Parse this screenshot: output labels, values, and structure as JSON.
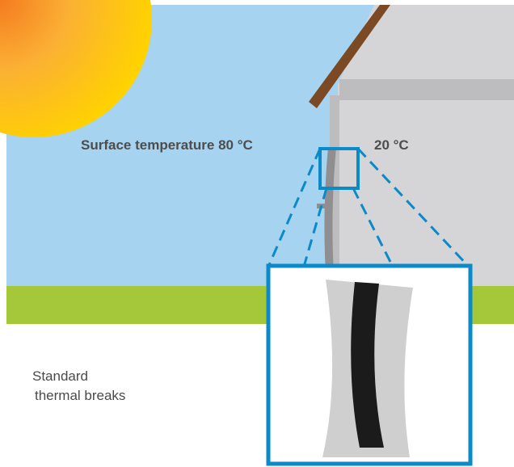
{
  "labels": {
    "surface_temperature": "Surface temperature 80 °C",
    "inside_temperature": "20 °C",
    "caption_line1": "Standard",
    "caption_line2": "thermal breaks"
  },
  "colors": {
    "sky": "#a6d3f0",
    "ground": "#a4c83a",
    "sun_center": "#ffd200",
    "sun_edge": "#f47b20",
    "building": "#d5d5d7",
    "building_shadow": "#bdbdbf",
    "roof": "#7b4a24",
    "callout": "#0a8ac8",
    "insulation": "#1b1b1b",
    "profile": "#cfcfcf"
  }
}
